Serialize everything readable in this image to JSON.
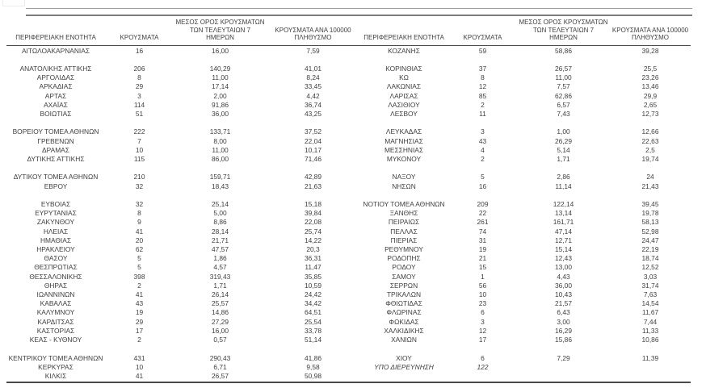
{
  "table": {
    "headers": {
      "region": "ΠΕΡΙΦΕΡΕΙΑΚΗ ΕΝΟΤΗΤΑ",
      "cases": "ΚΡΟΥΣΜΑΤΑ",
      "avg7": "ΜΕΣΟΣ ΟΡΟΣ ΚΡΟΥΣΜΑΤΩΝ\nΤΩΝ ΤΕΛΕΥΤΑΙΩΝ 7\nΗΜΕΡΩΝ",
      "per100k": "ΚΡΟΥΣΜΑΤΑ ΑΝΑ 100000\nΠΛΗΘΥΣΜΟ"
    },
    "rows": [
      {
        "left": [
          "ΑΙΤΩΛΟΑΚΑΡΝΑΝΙΑΣ",
          "16",
          "16,00",
          "7,59"
        ],
        "right": [
          "ΚΟΖΑΝΗΣ",
          "59",
          "58,86",
          "39,28"
        ]
      },
      {
        "left": null,
        "right": null
      },
      {
        "left": [
          "ΑΝΑΤΟΛΙΚΗΣ ΑΤΤΙΚΗΣ",
          "206",
          "140,29",
          "41,01"
        ],
        "right": [
          "ΚΟΡΙΝΘΙΑΣ",
          "37",
          "26,57",
          "25,5"
        ]
      },
      {
        "left": [
          "ΑΡΓΟΛΙΔΑΣ",
          "8",
          "11,00",
          "8,24"
        ],
        "right": [
          "ΚΩ",
          "8",
          "11,00",
          "23,26"
        ]
      },
      {
        "left": [
          "ΑΡΚΑΔΙΑΣ",
          "29",
          "17,14",
          "33,45"
        ],
        "right": [
          "ΛΑΚΩΝΙΑΣ",
          "12",
          "7,57",
          "13,46"
        ]
      },
      {
        "left": [
          "ΑΡΤΑΣ",
          "3",
          "2,00",
          "4,42"
        ],
        "right": [
          "ΛΑΡΙΣΑΣ",
          "85",
          "62,86",
          "29,9"
        ]
      },
      {
        "left": [
          "ΑΧΑΪΑΣ",
          "114",
          "91,86",
          "36,74"
        ],
        "right": [
          "ΛΑΣΙΘΙΟΥ",
          "2",
          "6,57",
          "2,65"
        ]
      },
      {
        "left": [
          "ΒΟΙΩΤΙΑΣ",
          "51",
          "36,00",
          "43,25"
        ],
        "right": [
          "ΛΕΣΒΟΥ",
          "11",
          "7,43",
          "12,73"
        ]
      },
      {
        "left": null,
        "right": null
      },
      {
        "left": [
          "ΒΟΡΕΙΟΥ ΤΟΜΕΑ ΑΘΗΝΩΝ",
          "222",
          "133,71",
          "37,52"
        ],
        "right": [
          "ΛΕΥΚΑΔΑΣ",
          "3",
          "1,00",
          "12,66"
        ]
      },
      {
        "left": [
          "ΓΡΕΒΕΝΩΝ",
          "7",
          "8,00",
          "22,04"
        ],
        "right": [
          "ΜΑΓΝΗΣΙΑΣ",
          "43",
          "26,29",
          "22,63"
        ]
      },
      {
        "left": [
          "ΔΡΑΜΑΣ",
          "10",
          "11,00",
          "10,17"
        ],
        "right": [
          "ΜΕΣΣΗΝΙΑΣ",
          "4",
          "5,14",
          "2,5"
        ]
      },
      {
        "left": [
          "ΔΥΤΙΚΗΣ ΑΤΤΙΚΗΣ",
          "115",
          "86,00",
          "71,46"
        ],
        "right": [
          "ΜΥΚΟΝΟΥ",
          "2",
          "1,71",
          "19,74"
        ]
      },
      {
        "left": null,
        "right": null
      },
      {
        "left": [
          "ΔΥΤΙΚΟΥ ΤΟΜΕΑ ΑΘΗΝΩΝ",
          "210",
          "159,71",
          "42,89"
        ],
        "right": [
          "ΝΑΞΟΥ",
          "5",
          "2,86",
          "24"
        ]
      },
      {
        "left": [
          "ΕΒΡΟΥ",
          "32",
          "18,43",
          "21,63"
        ],
        "right": [
          "ΝΗΣΩΝ",
          "16",
          "11,14",
          "21,43"
        ]
      },
      {
        "left": null,
        "right": null
      },
      {
        "left": [
          "ΕΥΒΟΙΑΣ",
          "32",
          "25,14",
          "15,18"
        ],
        "right": [
          "ΝΟΤΙΟΥ ΤΟΜΕΑ ΑΘΗΝΩΝ",
          "209",
          "122,14",
          "39,45"
        ]
      },
      {
        "left": [
          "ΕΥΡΥΤΑΝΙΑΣ",
          "8",
          "5,00",
          "39,84"
        ],
        "right": [
          "ΞΑΝΘΗΣ",
          "22",
          "13,14",
          "19,78"
        ]
      },
      {
        "left": [
          "ΖΑΚΥΝΘΟΥ",
          "9",
          "8,86",
          "22,08"
        ],
        "right": [
          "ΠΕΙΡΑΙΩΣ",
          "261",
          "161,71",
          "58,13"
        ]
      },
      {
        "left": [
          "ΗΛΕΙΑΣ",
          "41",
          "28,14",
          "25,74"
        ],
        "right": [
          "ΠΕΛΛΑΣ",
          "74",
          "47,14",
          "52,98"
        ]
      },
      {
        "left": [
          "ΗΜΑΘΙΑΣ",
          "20",
          "21,71",
          "14,22"
        ],
        "right": [
          "ΠΙΕΡΙΑΣ",
          "31",
          "12,71",
          "24,47"
        ]
      },
      {
        "left": [
          "ΗΡΑΚΛΕΙΟΥ",
          "62",
          "47,57",
          "20,3"
        ],
        "right": [
          "ΡΕΘΥΜΝΟΥ",
          "19",
          "15,14",
          "22,19"
        ]
      },
      {
        "left": [
          "ΘΑΣΟΥ",
          "5",
          "1,86",
          "36,31"
        ],
        "right": [
          "ΡΟΔΟΠΗΣ",
          "21",
          "12,43",
          "18,74"
        ]
      },
      {
        "left": [
          "ΘΕΣΠΡΩΤΙΑΣ",
          "5",
          "4,57",
          "11,47"
        ],
        "right": [
          "ΡΟΔΟΥ",
          "15",
          "13,00",
          "12,52"
        ]
      },
      {
        "left": [
          "ΘΕΣΣΑΛΟΝΙΚΗΣ",
          "398",
          "319,43",
          "35,85"
        ],
        "right": [
          "ΣΑΜΟΥ",
          "1",
          "4,43",
          "3,03"
        ]
      },
      {
        "left": [
          "ΘΗΡΑΣ",
          "2",
          "1,71",
          "10,59"
        ],
        "right": [
          "ΣΕΡΡΩΝ",
          "56",
          "36,00",
          "31,74"
        ]
      },
      {
        "left": [
          "ΙΩΑΝΝΙΝΩΝ",
          "41",
          "26,14",
          "24,42"
        ],
        "right": [
          "ΤΡΙΚΑΛΩΝ",
          "10",
          "10,43",
          "7,63"
        ]
      },
      {
        "left": [
          "ΚΑΒΑΛΑΣ",
          "43",
          "25,57",
          "34,42"
        ],
        "right": [
          "ΦΘΙΩΤΙΔΑΣ",
          "23",
          "21,57",
          "14,54"
        ]
      },
      {
        "left": [
          "ΚΑΛΥΜΝΟΥ",
          "19",
          "14,86",
          "64,51"
        ],
        "right": [
          "ΦΛΩΡΙΝΑΣ",
          "6",
          "6,43",
          "11,67"
        ]
      },
      {
        "left": [
          "ΚΑΡΔΙΤΣΑΣ",
          "29",
          "27,29",
          "25,54"
        ],
        "right": [
          "ΦΩΚΙΔΑΣ",
          "3",
          "3,00",
          "7,44"
        ]
      },
      {
        "left": [
          "ΚΑΣΤΟΡΙΑΣ",
          "17",
          "16,00",
          "33,78"
        ],
        "right": [
          "ΧΑΛΚΙΔΙΚΗΣ",
          "12",
          "16,29",
          "11,33"
        ]
      },
      {
        "left": [
          "ΚΕΑΣ - ΚΥΘΝΟΥ",
          "2",
          "0,57",
          "51,14"
        ],
        "right": [
          "ΧΑΝΙΩΝ",
          "17",
          "15,86",
          "10,86"
        ]
      },
      {
        "left": null,
        "right": null
      },
      {
        "left": [
          "ΚΕΝΤΡΙΚΟΥ ΤΟΜΕΑ ΑΘΗΝΩΝ",
          "431",
          "290,43",
          "41,86"
        ],
        "right": [
          "ΧΙΟΥ",
          "6",
          "7,29",
          "11,39"
        ]
      },
      {
        "left": [
          "ΚΕΡΚΥΡΑΣ",
          "10",
          "6,71",
          "9,58"
        ],
        "right": [
          "ΥΠΟ ΔΙΕΡΕΥΝΗΣΗ",
          "122",
          "",
          ""
        ],
        "right_italic": true
      },
      {
        "left": [
          "ΚΙΛΚΙΣ",
          "41",
          "26,57",
          "50,98"
        ],
        "right": null
      }
    ]
  }
}
